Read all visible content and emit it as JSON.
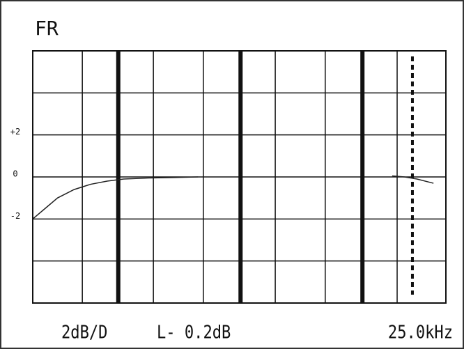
{
  "chart_data": {
    "type": "line",
    "title": "FR",
    "xlim": [
      0,
      100
    ],
    "xticks": [
      12,
      20.7,
      29.2,
      41.3,
      50.3,
      58.7,
      70.8,
      79.8,
      88.2
    ],
    "major_xticks": [
      20.7,
      50.3,
      79.8
    ],
    "cursor_x": 91.9,
    "ylim": [
      -6,
      6
    ],
    "ygrid": [
      -4,
      -2,
      0,
      2,
      4
    ],
    "yticks": [
      {
        "value": 2,
        "label": "+2"
      },
      0,
      -2
    ],
    "series": [
      {
        "color": "#222",
        "x": [
          0,
          3,
          6,
          10,
          14,
          18,
          22,
          28,
          34,
          40,
          70,
          87,
          90,
          93,
          97
        ],
        "values": [
          -2.0,
          -1.5,
          -1.0,
          -0.6,
          -0.35,
          -0.2,
          -0.1,
          -0.05,
          -0.03,
          0.0,
          null,
          0.05,
          0.0,
          -0.1,
          -0.3
        ]
      }
    ],
    "footer": [
      "2dB/D",
      "L- 0.2dB",
      "25.0kHz"
    ]
  }
}
